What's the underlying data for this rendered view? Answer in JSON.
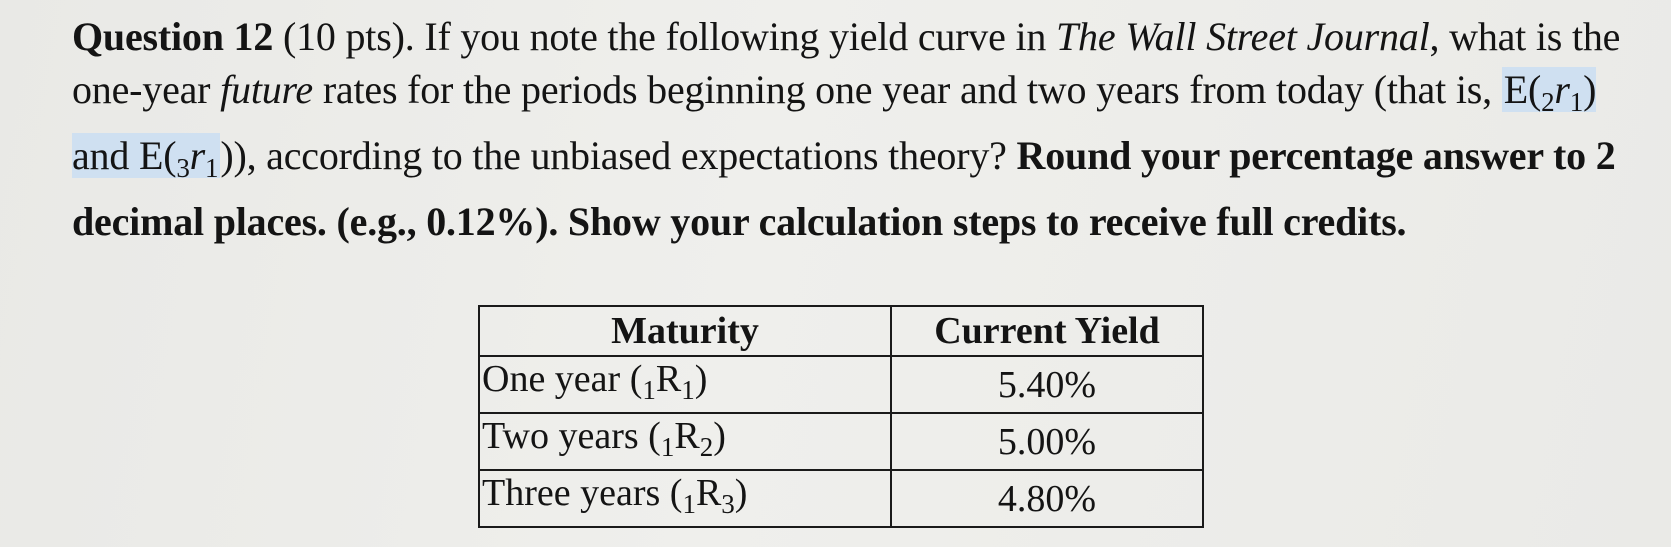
{
  "question": {
    "number_label": "Question 12",
    "points": "(10 pts).",
    "text_1": "If you note the following yield curve in",
    "journal": "The Wall Street Journal",
    "text_2": ", what is the one-year",
    "future_word": "future",
    "text_3": "rates for the periods beginning one year and two years from today (that is,",
    "expr1": {
      "open": "E(",
      "pre": "2",
      "r": "r",
      "sub": "1",
      "close": ")"
    },
    "and_word": "and",
    "expr2": {
      "open": "E(",
      "pre": "3",
      "r": "r",
      "sub": "1",
      "close": "))"
    },
    "text_4": ", according to the unbiased expectations theory?",
    "bold_instruction": "Round your percentage answer to 2 decimal places. (e.g., 0.12%). Show your calculation steps to receive full credits."
  },
  "table": {
    "headers": [
      "Maturity",
      "Current Yield"
    ],
    "rows": [
      {
        "maturity": "One year (",
        "pre": "1",
        "R": "R",
        "sub": "1",
        "close": ")",
        "yield": "5.40%"
      },
      {
        "maturity": "Two years (",
        "pre": "1",
        "R": "R",
        "sub": "2",
        "close": ")",
        "yield": "5.00%"
      },
      {
        "maturity": "Three years (",
        "pre": "1",
        "R": "R",
        "sub": "3",
        "close": ")",
        "yield": "4.80%"
      }
    ]
  }
}
